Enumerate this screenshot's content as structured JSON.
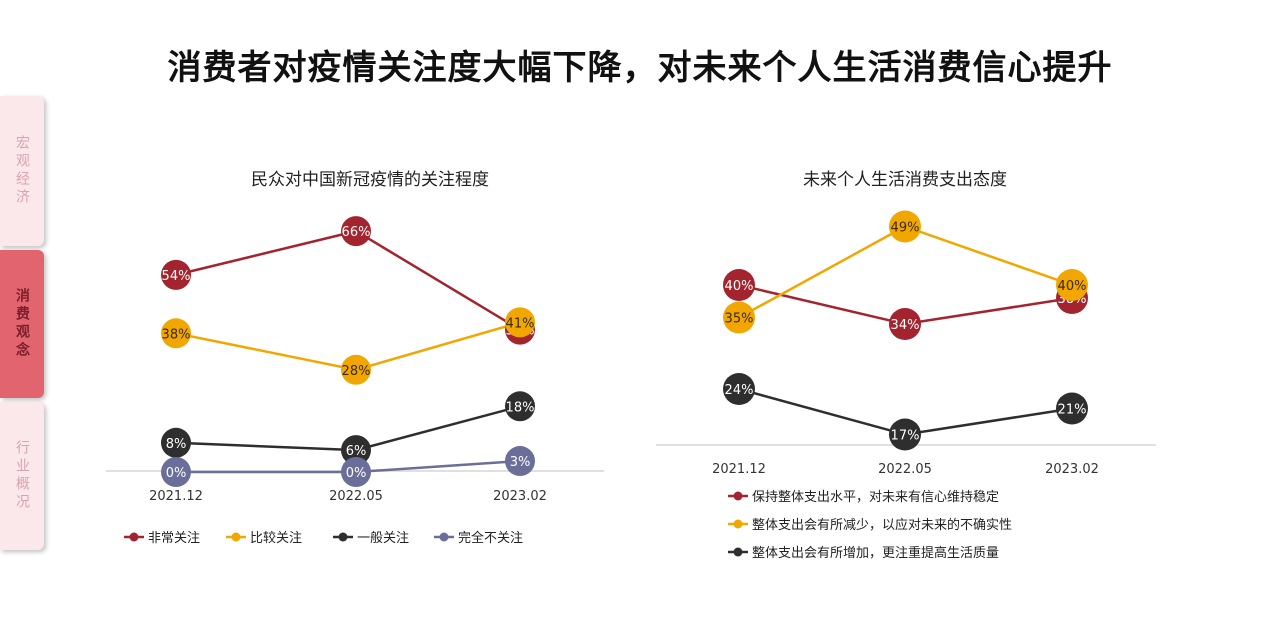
{
  "page": {
    "title": "消费者对疫情关注度大幅下降，对未来个人生活消费信心提升"
  },
  "sidebar": {
    "tabs": [
      {
        "label": "宏观经济",
        "active": false
      },
      {
        "label": "消费观念",
        "active": true
      },
      {
        "label": "行业概况",
        "active": false
      }
    ]
  },
  "colors": {
    "red": "#a3242e",
    "orange": "#f2a700",
    "black": "#2e2e2e",
    "purple": "#6a6e98",
    "axis": "#d6d6d6"
  },
  "chart_data": [
    {
      "type": "line",
      "title": "民众对中国新冠疫情的关注程度",
      "categories": [
        "2021.12",
        "2022.05",
        "2023.02"
      ],
      "series": [
        {
          "name": "非常关注",
          "values": [
            54,
            66,
            39
          ],
          "labels": [
            "54%",
            "66%",
            "39%"
          ]
        },
        {
          "name": "比较关注",
          "values": [
            38,
            28,
            41
          ],
          "labels": [
            "38%",
            "28%",
            "41%"
          ]
        },
        {
          "name": "一般关注",
          "values": [
            8,
            6,
            18
          ],
          "labels": [
            "8%",
            "6%",
            "18%"
          ]
        },
        {
          "name": "完全不关注",
          "values": [
            0,
            0,
            3
          ],
          "labels": [
            "0%",
            "0%",
            "3%"
          ]
        }
      ],
      "legend": "bottom",
      "grid": false
    },
    {
      "type": "line",
      "title": "未来个人生活消费支出态度",
      "categories": [
        "2021.12",
        "2022.05",
        "2023.02"
      ],
      "series": [
        {
          "name": "保持整体支出水平，对未来有信心维持稳定",
          "values": [
            40,
            34,
            38
          ],
          "labels": [
            "40%",
            "34%",
            "38%"
          ]
        },
        {
          "name": "整体支出会有所减少，以应对未来的不确实性",
          "values": [
            35,
            49,
            40
          ],
          "labels": [
            "35%",
            "49%",
            "40%"
          ]
        },
        {
          "name": "整体支出会有所增加，更注重提高生活质量",
          "values": [
            24,
            17,
            21
          ],
          "labels": [
            "24%",
            "17%",
            "21%"
          ]
        }
      ],
      "legend": "bottom",
      "grid": false
    }
  ]
}
